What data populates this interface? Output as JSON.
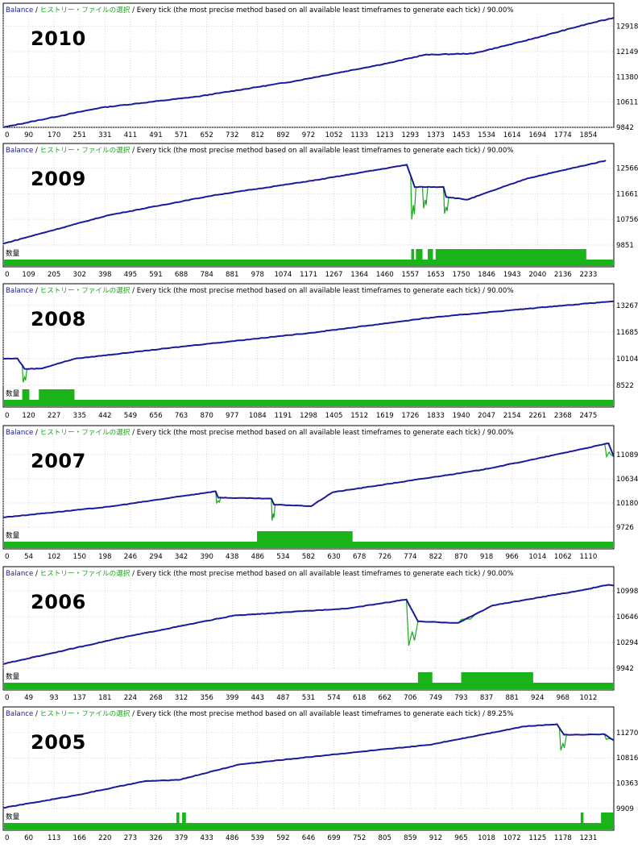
{
  "header": {
    "balance_label": "Balance",
    "history_label": "ヒストリー・ファイルの選択",
    "description": "Every tick (the most precise method based on all available least timeframes to generate each tick)"
  },
  "volume_label": "数量",
  "colors": {
    "balance_line": "#1a1a9a",
    "drawdown_line": "#1aa81a",
    "volume_bar": "#1ab41a",
    "grid": "#c8c8c8",
    "frame": "#000000"
  },
  "chart_data": [
    {
      "type": "line",
      "year_label": "2010",
      "quality": "90.00%",
      "y_ticks": [
        12918,
        12149,
        11380,
        10611,
        9842
      ],
      "x_ticks": [
        "0",
        "90",
        "170",
        "251",
        "331",
        "411",
        "491",
        "571",
        "652",
        "732",
        "812",
        "892",
        "972",
        "1052",
        "1133",
        "1213",
        "1293",
        "1373",
        "1453",
        "1534",
        "1614",
        "1694",
        "1774",
        "1854"
      ],
      "xlim": [
        0,
        1885
      ],
      "ylim": [
        9842,
        13180
      ],
      "has_volume": false,
      "balance": [
        [
          0,
          9842
        ],
        [
          300,
          10440
        ],
        [
          600,
          10780
        ],
        [
          900,
          11250
        ],
        [
          1200,
          11820
        ],
        [
          1300,
          12050
        ],
        [
          1450,
          12090
        ],
        [
          1600,
          12450
        ],
        [
          1800,
          12980
        ],
        [
          1885,
          13180
        ]
      ],
      "drawdowns": [],
      "volume_blocks": []
    },
    {
      "type": "line",
      "year_label": "2009",
      "quality": "90.00%",
      "y_ticks": [
        12566,
        11661,
        10756,
        9851
      ],
      "x_ticks": [
        "0",
        "109",
        "205",
        "302",
        "398",
        "495",
        "591",
        "688",
        "784",
        "881",
        "978",
        "1074",
        "1171",
        "1267",
        "1364",
        "1460",
        "1557",
        "1653",
        "1750",
        "1846",
        "1943",
        "2040",
        "2136",
        "2233"
      ],
      "xlim": [
        0,
        2330
      ],
      "ylim": [
        9851,
        12920
      ],
      "has_volume": true,
      "balance": [
        [
          0,
          9900
        ],
        [
          400,
          10900
        ],
        [
          800,
          11600
        ],
        [
          1200,
          12150
        ],
        [
          1540,
          12680
        ],
        [
          1570,
          11900
        ],
        [
          1680,
          11900
        ],
        [
          1690,
          11550
        ],
        [
          1770,
          11450
        ],
        [
          2000,
          12200
        ],
        [
          2300,
          12830
        ]
      ],
      "drawdowns": [
        [
          1555,
          1575,
          10750
        ],
        [
          1600,
          1620,
          11150
        ],
        [
          1680,
          1700,
          10960
        ]
      ],
      "volume_blocks": [
        [
          1557,
          1568
        ],
        [
          1575,
          1600
        ],
        [
          1620,
          1640
        ],
        [
          1650,
          2225
        ]
      ]
    },
    {
      "type": "line",
      "year_label": "2008",
      "quality": "90.00%",
      "y_ticks": [
        13267,
        11685,
        10104,
        8522
      ],
      "x_ticks": [
        "0",
        "120",
        "227",
        "335",
        "442",
        "549",
        "656",
        "763",
        "870",
        "977",
        "1084",
        "1191",
        "1298",
        "1405",
        "1512",
        "1619",
        "1726",
        "1833",
        "1940",
        "2047",
        "2154",
        "2261",
        "2368",
        "2475"
      ],
      "xlim": [
        0,
        2570
      ],
      "ylim": [
        8522,
        13700
      ],
      "has_volume": true,
      "balance": [
        [
          0,
          10104
        ],
        [
          60,
          10120
        ],
        [
          90,
          9500
        ],
        [
          160,
          9520
        ],
        [
          300,
          10100
        ],
        [
          800,
          10900
        ],
        [
          1300,
          11650
        ],
        [
          1800,
          12550
        ],
        [
          2300,
          13200
        ],
        [
          2570,
          13520
        ]
      ],
      "drawdowns": [
        [
          80,
          100,
          8700
        ]
      ],
      "volume_blocks": [
        [
          80,
          110
        ],
        [
          150,
          300
        ]
      ]
    },
    {
      "type": "line",
      "year_label": "2007",
      "quality": "90.00%",
      "y_ticks": [
        11089,
        10634,
        10180,
        9726
      ],
      "x_ticks": [
        "0",
        "54",
        "102",
        "150",
        "198",
        "246",
        "294",
        "342",
        "390",
        "438",
        "486",
        "534",
        "582",
        "630",
        "678",
        "726",
        "774",
        "822",
        "870",
        "918",
        "966",
        "1014",
        "1062",
        "1110"
      ],
      "xlim": [
        0,
        1150
      ],
      "ylim": [
        9726,
        11360
      ],
      "has_volume": true,
      "balance": [
        [
          0,
          9910
        ],
        [
          200,
          10110
        ],
        [
          400,
          10400
        ],
        [
          405,
          10280
        ],
        [
          505,
          10260
        ],
        [
          510,
          10150
        ],
        [
          580,
          10120
        ],
        [
          620,
          10380
        ],
        [
          900,
          10800
        ],
        [
          1000,
          11000
        ],
        [
          1140,
          11300
        ],
        [
          1150,
          11050
        ]
      ],
      "drawdowns": [
        [
          400,
          410,
          10180
        ],
        [
          505,
          512,
          9850
        ],
        [
          1133,
          1150,
          11050
        ]
      ],
      "volume_blocks": [
        [
          478,
          658
        ]
      ]
    },
    {
      "type": "line",
      "year_label": "2006",
      "quality": "90.00%",
      "y_ticks": [
        10998,
        10646,
        10294,
        9942
      ],
      "x_ticks": [
        "0",
        "49",
        "93",
        "137",
        "181",
        "224",
        "268",
        "312",
        "356",
        "399",
        "443",
        "487",
        "531",
        "574",
        "618",
        "662",
        "706",
        "749",
        "793",
        "837",
        "881",
        "924",
        "968",
        "1012"
      ],
      "xlim": [
        0,
        1060
      ],
      "ylim": [
        9942,
        11130
      ],
      "has_volume": true,
      "balance": [
        [
          0,
          10000
        ],
        [
          200,
          10350
        ],
        [
          400,
          10660
        ],
        [
          600,
          10760
        ],
        [
          700,
          10880
        ],
        [
          720,
          10580
        ],
        [
          790,
          10560
        ],
        [
          850,
          10800
        ],
        [
          1000,
          11000
        ],
        [
          1050,
          11080
        ],
        [
          1060,
          11070
        ]
      ],
      "drawdowns": [
        [
          700,
          720,
          10250
        ],
        [
          790,
          820,
          10610
        ]
      ],
      "volume_blocks": [
        [
          720,
          745
        ],
        [
          795,
          920
        ]
      ]
    },
    {
      "type": "line",
      "year_label": "2005",
      "quality": "89.25%",
      "y_ticks": [
        11270,
        10816,
        10363,
        9909
      ],
      "x_ticks": [
        "0",
        "60",
        "113",
        "166",
        "220",
        "273",
        "326",
        "379",
        "433",
        "486",
        "539",
        "592",
        "646",
        "699",
        "752",
        "805",
        "859",
        "912",
        "965",
        "1018",
        "1072",
        "1125",
        "1178",
        "1231"
      ],
      "xlim": [
        0,
        1290
      ],
      "ylim": [
        9909,
        11470
      ],
      "has_volume": true,
      "balance": [
        [
          0,
          9920
        ],
        [
          150,
          10140
        ],
        [
          300,
          10400
        ],
        [
          370,
          10420
        ],
        [
          500,
          10700
        ],
        [
          700,
          10880
        ],
        [
          900,
          11050
        ],
        [
          1100,
          11380
        ],
        [
          1170,
          11420
        ],
        [
          1185,
          11230
        ],
        [
          1270,
          11240
        ],
        [
          1290,
          11130
        ]
      ],
      "drawdowns": [
        [
          296,
          305,
          10390
        ],
        [
          1175,
          1190,
          10950
        ],
        [
          1270,
          1290,
          11150
        ]
      ],
      "volume_blocks": [
        [
          366,
          372
        ],
        [
          378,
          386
        ],
        [
          1220,
          1226
        ],
        [
          1263,
          1290
        ]
      ]
    }
  ]
}
